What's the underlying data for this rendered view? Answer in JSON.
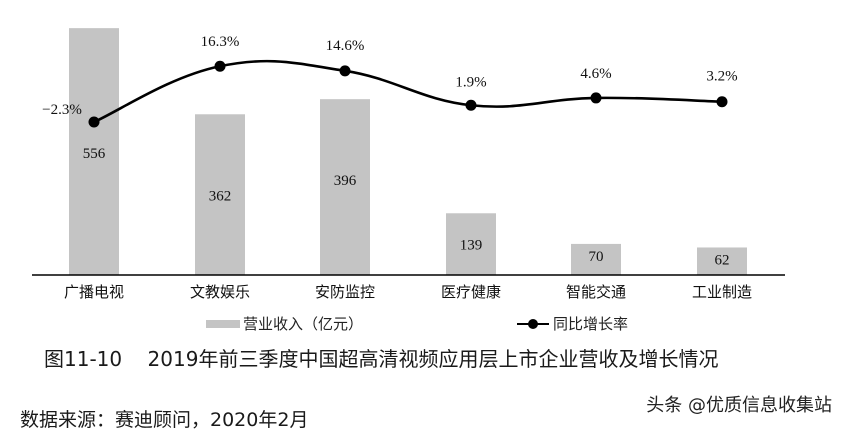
{
  "chart_data": {
    "type": "bar+line",
    "title": "图11-10    2019年前三季度中国超高清视频应用层上市企业营收及增长情况",
    "categories": [
      "广播电视",
      "文教娱乐",
      "安防监控",
      "医疗健康",
      "智能交通",
      "工业制造"
    ],
    "series": [
      {
        "name": "营业收入（亿元）",
        "type": "bar",
        "values": [
          556,
          362,
          396,
          139,
          70,
          62
        ],
        "color": "#c4c4c4"
      },
      {
        "name": "同比增长率",
        "type": "line",
        "values": [
          -2.3,
          16.3,
          14.6,
          1.9,
          4.6,
          3.2
        ],
        "unit": "%",
        "color": "#000000"
      }
    ],
    "bar_labels": [
      "556",
      "362",
      "396",
      "139",
      "70",
      "62"
    ],
    "line_labels": [
      "−2.3%",
      "16.3%",
      "14.6%",
      "1.9%",
      "4.6%",
      "3.2%"
    ],
    "xlabel": "",
    "ylabel": "",
    "grid": false,
    "legend_position": "bottom"
  },
  "legend": {
    "bar_label": "营业收入（亿元）",
    "line_label": "同比增长率"
  },
  "caption": "图11-10    2019年前三季度中国超高清视频应用层上市企业营收及增长情况",
  "source": "数据来源：赛迪顾问，2020年2月",
  "watermark": "头条 @优质信息收集站",
  "colors": {
    "bar": "#c4c4c4",
    "line": "#000000",
    "axis": "#000000",
    "text": "#1a1a1a"
  }
}
